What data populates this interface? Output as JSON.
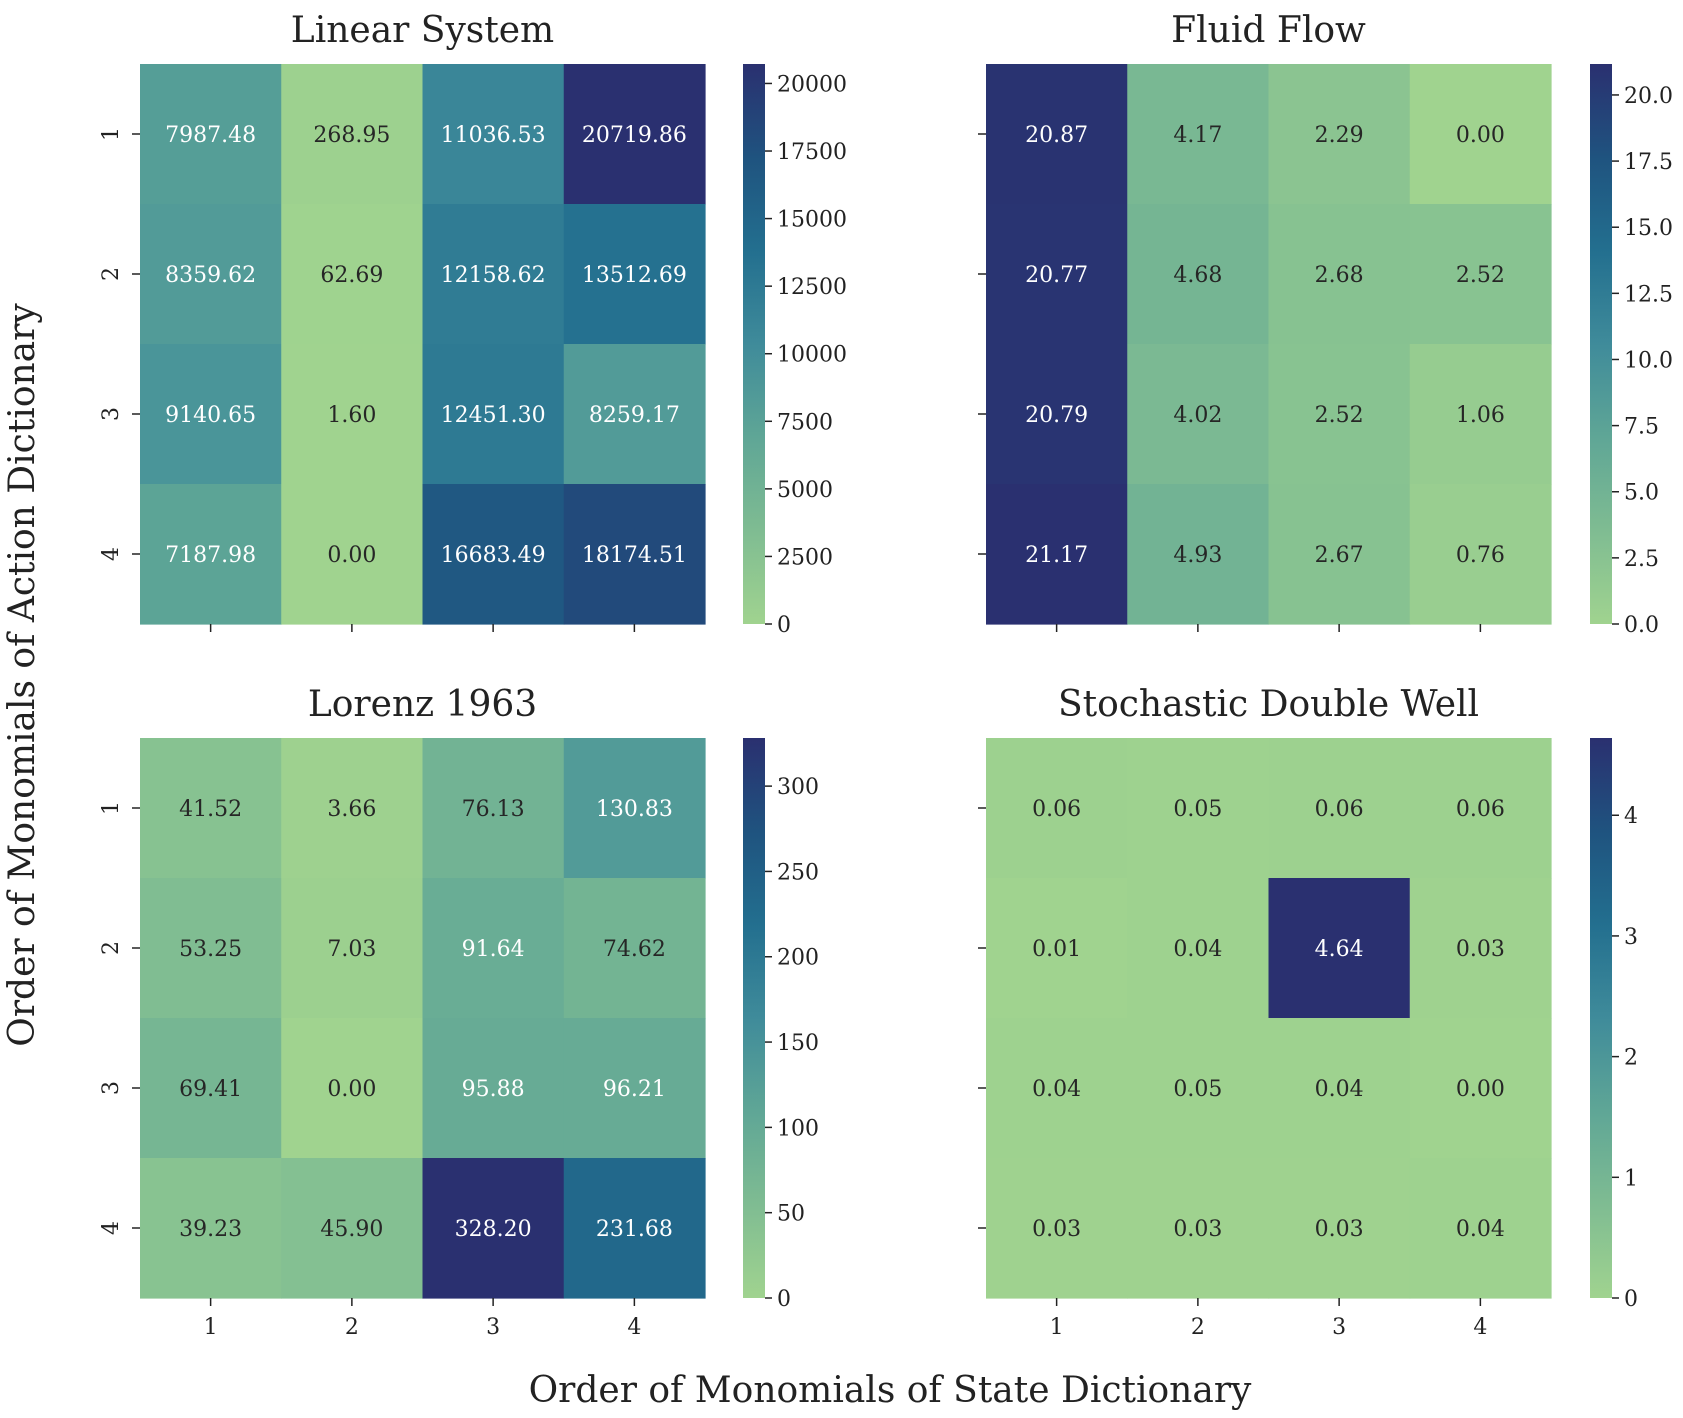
{
  "figure": {
    "xlabel": "Order of Monomials of State Dictionary",
    "ylabel": "Order of Monomials of Action Dictionary"
  },
  "colormap": [
    "#a0d38f",
    "#7fbc92",
    "#5fa696",
    "#3f8b9a",
    "#236f8f",
    "#1f537f",
    "#2a3070"
  ],
  "chart_data": [
    {
      "type": "heatmap",
      "title": "Linear System",
      "xlabel": "Order of Monomials of State Dictionary",
      "ylabel": "Order of Monomials of Action Dictionary",
      "x_categories": [
        "1",
        "2",
        "3",
        "4"
      ],
      "y_categories": [
        "1",
        "2",
        "3",
        "4"
      ],
      "values": [
        [
          7987.48,
          268.95,
          11036.53,
          20719.86
        ],
        [
          8359.62,
          62.69,
          12158.62,
          13512.69
        ],
        [
          9140.65,
          1.6,
          12451.3,
          8259.17
        ],
        [
          7187.98,
          0.0,
          16683.49,
          18174.51
        ]
      ],
      "labels": [
        [
          "7987.48",
          "268.95",
          "11036.53",
          "20719.86"
        ],
        [
          "8359.62",
          "62.69",
          "12158.62",
          "13512.69"
        ],
        [
          "9140.65",
          "1.60",
          "12451.30",
          "8259.17"
        ],
        [
          "7187.98",
          "0.00",
          "16683.49",
          "18174.51"
        ]
      ],
      "vmin": 0,
      "vmax": 20719.86,
      "colorbar_ticks": [
        0,
        2500,
        5000,
        7500,
        10000,
        12500,
        15000,
        17500,
        20000
      ],
      "colorbar_tick_labels": [
        "0",
        "2500",
        "5000",
        "7500",
        "10000",
        "12500",
        "15000",
        "17500",
        "20000"
      ],
      "show_x_tick_labels": false,
      "show_y_tick_labels": true
    },
    {
      "type": "heatmap",
      "title": "Fluid Flow",
      "x_categories": [
        "1",
        "2",
        "3",
        "4"
      ],
      "y_categories": [
        "1",
        "2",
        "3",
        "4"
      ],
      "values": [
        [
          20.87,
          4.17,
          2.29,
          0.0
        ],
        [
          20.77,
          4.68,
          2.68,
          2.52
        ],
        [
          20.79,
          4.02,
          2.52,
          1.06
        ],
        [
          21.17,
          4.93,
          2.67,
          0.76
        ]
      ],
      "labels": [
        [
          "20.87",
          "4.17",
          "2.29",
          "0.00"
        ],
        [
          "20.77",
          "4.68",
          "2.68",
          "2.52"
        ],
        [
          "20.79",
          "4.02",
          "2.52",
          "1.06"
        ],
        [
          "21.17",
          "4.93",
          "2.67",
          "0.76"
        ]
      ],
      "vmin": 0,
      "vmax": 21.17,
      "colorbar_ticks": [
        0,
        2.5,
        5,
        7.5,
        10,
        12.5,
        15,
        17.5,
        20
      ],
      "colorbar_tick_labels": [
        "0.0",
        "2.5",
        "5.0",
        "7.5",
        "10.0",
        "12.5",
        "15.0",
        "17.5",
        "20.0"
      ],
      "show_x_tick_labels": false,
      "show_y_tick_labels": false
    },
    {
      "type": "heatmap",
      "title": "Lorenz 1963",
      "x_categories": [
        "1",
        "2",
        "3",
        "4"
      ],
      "y_categories": [
        "1",
        "2",
        "3",
        "4"
      ],
      "values": [
        [
          41.52,
          3.66,
          76.13,
          130.83
        ],
        [
          53.25,
          7.03,
          91.64,
          74.62
        ],
        [
          69.41,
          0.0,
          95.88,
          96.21
        ],
        [
          39.23,
          45.9,
          328.2,
          231.68
        ]
      ],
      "labels": [
        [
          "41.52",
          "3.66",
          "76.13",
          "130.83"
        ],
        [
          "53.25",
          "7.03",
          "91.64",
          "74.62"
        ],
        [
          "69.41",
          "0.00",
          "95.88",
          "96.21"
        ],
        [
          "39.23",
          "45.90",
          "328.20",
          "231.68"
        ]
      ],
      "vmin": 0,
      "vmax": 328.2,
      "colorbar_ticks": [
        0,
        50,
        100,
        150,
        200,
        250,
        300
      ],
      "colorbar_tick_labels": [
        "0",
        "50",
        "100",
        "150",
        "200",
        "250",
        "300"
      ],
      "show_x_tick_labels": true,
      "show_y_tick_labels": true
    },
    {
      "type": "heatmap",
      "title": "Stochastic Double Well",
      "x_categories": [
        "1",
        "2",
        "3",
        "4"
      ],
      "y_categories": [
        "1",
        "2",
        "3",
        "4"
      ],
      "values": [
        [
          0.06,
          0.05,
          0.06,
          0.06
        ],
        [
          0.01,
          0.04,
          4.64,
          0.03
        ],
        [
          0.04,
          0.05,
          0.04,
          0.0
        ],
        [
          0.03,
          0.03,
          0.03,
          0.04
        ]
      ],
      "labels": [
        [
          "0.06",
          "0.05",
          "0.06",
          "0.06"
        ],
        [
          "0.01",
          "0.04",
          "4.64",
          "0.03"
        ],
        [
          "0.04",
          "0.05",
          "0.04",
          "0.00"
        ],
        [
          "0.03",
          "0.03",
          "0.03",
          "0.04"
        ]
      ],
      "vmin": 0,
      "vmax": 4.64,
      "colorbar_ticks": [
        0,
        1,
        2,
        3,
        4
      ],
      "colorbar_tick_labels": [
        "0",
        "1",
        "2",
        "3",
        "4"
      ],
      "show_x_tick_labels": true,
      "show_y_tick_labels": false
    }
  ]
}
